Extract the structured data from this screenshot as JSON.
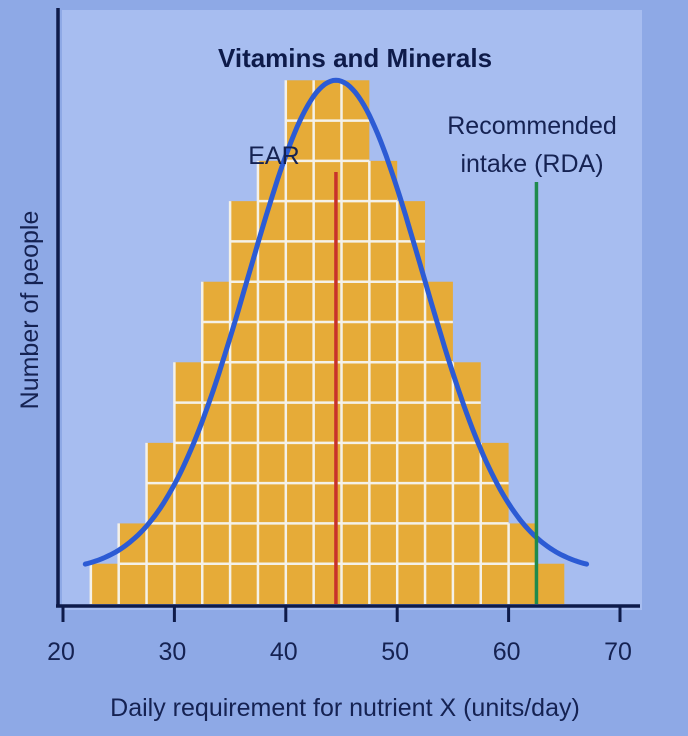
{
  "chart_data": {
    "type": "bar",
    "title": "Vitamins and Minerals",
    "xlabel": "Daily requirement for nutrient X (units/day)",
    "ylabel": "Number of people",
    "xlim": [
      20,
      70
    ],
    "x_ticks": [
      20,
      30,
      40,
      50,
      60,
      70
    ],
    "ylim": [
      0,
      14
    ],
    "y_ticks": [],
    "bin_width": 2.5,
    "x": [
      23.75,
      26.25,
      28.75,
      31.25,
      33.75,
      36.25,
      38.75,
      41.25,
      43.75,
      46.25,
      48.75,
      51.25,
      53.75,
      56.25,
      58.75,
      61.25,
      63.75
    ],
    "values": [
      1,
      2,
      4,
      6,
      8,
      10,
      11,
      13,
      13,
      13,
      11,
      10,
      8,
      6,
      4,
      2,
      1
    ],
    "curve": {
      "type": "normal",
      "mean": 44.5,
      "sd": 7.8
    },
    "annotations": [
      {
        "name": "ear-line",
        "label": "EAR",
        "x": 44.5,
        "color": "#c8322b"
      },
      {
        "name": "rda-line",
        "label_lines": [
          "Recommended",
          "intake (RDA)"
        ],
        "x": 62.5,
        "color": "#1f8a4c"
      }
    ],
    "grid": false,
    "colors": {
      "bars": "#e6ab38",
      "bar_grid": "#f4f1e9",
      "curve": "#2c5bd4",
      "axis": "#0e1b4a",
      "background": "#8ea9e6",
      "plot_background": "#a7bdf0"
    }
  }
}
